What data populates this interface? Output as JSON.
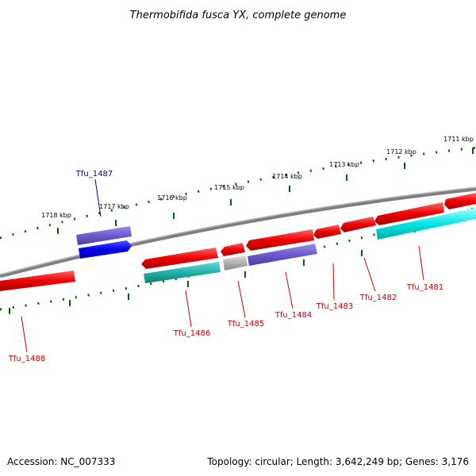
{
  "title": "Thermobifida fusca YX, complete genome",
  "footer": {
    "accession": "Accession: NC_007333",
    "topology": "Topology: circular; Length: 3,642,249 bp; Genes: 3,176"
  },
  "colors": {
    "red_gene": "#ee0000",
    "red_label": "#cc0000",
    "blue_label": "#000099",
    "blue_gene": "#0000ee",
    "purple_gene": "#6a5acd",
    "cyan_gene": "#00cccc",
    "dark_cyan_gene": "#20b2aa",
    "grey_gene": "#b0b0b0",
    "backbone": "#7f7f7f",
    "tick": "#006400"
  },
  "kbp_labels": [
    "1711 kbp",
    "1712 kbp",
    "1713 kbp",
    "1714 kbp",
    "1715 kbp",
    "1716 kbp",
    "1717 kbp",
    "1718 kbp"
  ],
  "gene_labels": [
    {
      "text": "Tfu_1481",
      "color": "red"
    },
    {
      "text": "Tfu_1482",
      "color": "red"
    },
    {
      "text": "Tfu_1483",
      "color": "red"
    },
    {
      "text": "Tfu_1484",
      "color": "red"
    },
    {
      "text": "Tfu_1485",
      "color": "red"
    },
    {
      "text": "Tfu_1486",
      "color": "red"
    },
    {
      "text": "Tfu_1487",
      "color": "blue"
    },
    {
      "text": "Tfu_1488",
      "color": "red"
    }
  ]
}
